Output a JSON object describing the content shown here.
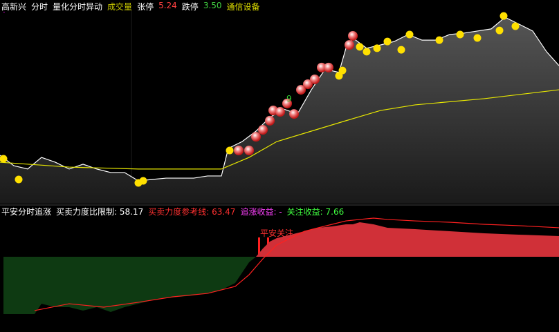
{
  "header": {
    "items": [
      {
        "text": "高新兴",
        "color": "#ffffff"
      },
      {
        "text": "分时",
        "color": "#ffffff"
      },
      {
        "text": "量化分时异动",
        "color": "#ffffff"
      },
      {
        "text": "成交量",
        "color": "#c8c800"
      },
      {
        "text": "张停",
        "color": "#ffffff"
      },
      {
        "text": "5.24",
        "color": "#ff4040"
      },
      {
        "text": "跌停",
        "color": "#ffffff"
      },
      {
        "text": "3.50",
        "color": "#40d040"
      },
      {
        "text": "通信设备",
        "color": "#e0e000"
      }
    ]
  },
  "indicator_header": {
    "items": [
      {
        "text": "平安分时追涨",
        "color": "#ffffff"
      },
      {
        "text": "买卖力度比限制: 58.17",
        "color": "#ffffff"
      },
      {
        "text": "买卖力度参考线: 63.47",
        "color": "#ff3030"
      },
      {
        "text": "追涨收益: -",
        "color": "#ff40ff"
      },
      {
        "text": "关注收益: 7.66",
        "color": "#40ff40"
      }
    ]
  },
  "chart_data": [
    {
      "type": "line",
      "xlim": [
        0,
        808
      ],
      "ylim": [
        0,
        100
      ],
      "annotation": "9",
      "series": [
        {
          "color": "#ffffff",
          "fill": true,
          "x": [
            0,
            20,
            40,
            60,
            80,
            100,
            120,
            140,
            160,
            180,
            200,
            220,
            240,
            260,
            280,
            300,
            320,
            330,
            350,
            370,
            390,
            410,
            430,
            450,
            470,
            490,
            500,
            510,
            530,
            550,
            570,
            590,
            610,
            630,
            650,
            670,
            690,
            710,
            730,
            750,
            770,
            790,
            808
          ],
          "values": [
            25,
            19.6,
            17.9,
            23.9,
            21.4,
            17.9,
            20.4,
            17.9,
            16.1,
            16.1,
            11.8,
            12.5,
            13.2,
            13.2,
            13.2,
            14.3,
            14.3,
            28.6,
            32.1,
            37.5,
            44.6,
            48.9,
            46.4,
            58.9,
            69.6,
            67.9,
            80.4,
            85.7,
            80.4,
            82.1,
            83.9,
            87.5,
            84.6,
            84.6,
            87.5,
            88.2,
            89.3,
            90.4,
            96.4,
            92.9,
            89.3,
            78.6,
            71.4
          ]
        },
        {
          "color": "#e8e800",
          "x": [
            0,
            100,
            200,
            320,
            360,
            400,
            450,
            500,
            550,
            600,
            700,
            808
          ],
          "values": [
            21.4,
            18.9,
            17.9,
            17.9,
            23.9,
            32.1,
            37.5,
            42.9,
            48.2,
            51.1,
            54.3,
            58.9
          ]
        },
        {
          "color": "#ffe000",
          "style": "dot",
          "x": [
            5,
            27,
            200,
            207,
            332,
            490,
            495,
            520,
            530,
            545,
            560,
            580,
            592,
            635,
            665,
            690,
            722,
            728,
            745
          ],
          "values": [
            23.2,
            12.5,
            10.7,
            11.8,
            27.5,
            66.1,
            68.9,
            81.1,
            78.6,
            80.4,
            83.9,
            79.6,
            87.5,
            84.6,
            87.5,
            85.7,
            89.6,
            97.1,
            91.8
          ]
        },
        {
          "color": "#e83030",
          "style": "ball",
          "x": [
            345,
            360,
            370,
            380,
            390,
            395,
            405,
            415,
            425,
            435,
            445,
            455,
            465,
            475,
            505,
            510
          ],
          "values": [
            27.5,
            27.5,
            34.6,
            38.2,
            42.9,
            48.2,
            47.5,
            51.8,
            46.4,
            58.9,
            61.8,
            64.3,
            70.4,
            70.4,
            82.1,
            86.8
          ]
        }
      ]
    },
    {
      "type": "area",
      "xlim": [
        0,
        808
      ],
      "ylim": [
        0,
        100
      ],
      "baseline": 58.7,
      "annotation": "平安关注",
      "series": [
        {
          "color": "#d03038",
          "color_below": "#0e3a12",
          "fill": true,
          "x": [
            5,
            50,
            60,
            80,
            100,
            120,
            140,
            160,
            180,
            200,
            220,
            240,
            260,
            280,
            300,
            320,
            340,
            350,
            360,
            370,
            380,
            390,
            400,
            420,
            440,
            460,
            480,
            500,
            510,
            520,
            540,
            560,
            600,
            650,
            700,
            750,
            808
          ],
          "values": [
            3.3,
            3.3,
            13.3,
            10,
            10,
            6.7,
            10,
            5.3,
            10,
            13.3,
            16.7,
            18.7,
            20,
            21.3,
            23.3,
            26.7,
            33.3,
            43.3,
            53.3,
            58.7,
            66.7,
            73.3,
            76.7,
            80,
            83.3,
            86.7,
            88,
            90,
            90,
            92,
            90,
            86.7,
            85.3,
            83.3,
            81.3,
            80,
            78.7
          ]
        },
        {
          "color": "#ff2020",
          "x": [
            50,
            100,
            150,
            200,
            250,
            300,
            340,
            360,
            380,
            400,
            420,
            440,
            460,
            480,
            500,
            520,
            540,
            560,
            600,
            650,
            700,
            750,
            808
          ],
          "values": [
            6.7,
            13.3,
            10,
            14.7,
            20,
            23.3,
            30,
            41.3,
            56.7,
            70,
            76.7,
            83.3,
            86.7,
            90,
            93.3,
            94.7,
            96,
            94.7,
            93.3,
            92,
            90,
            88.7,
            86.7
          ]
        }
      ]
    }
  ]
}
